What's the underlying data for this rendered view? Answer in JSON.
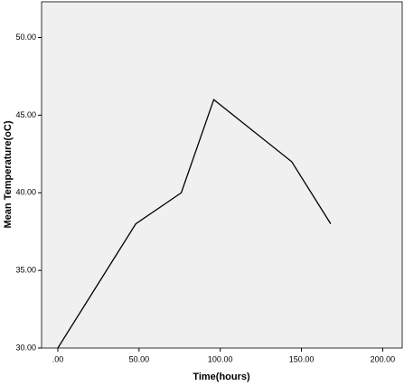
{
  "chart_data": {
    "type": "line",
    "x_label": "Time(hours)",
    "y_label": "Mean Temperature(oC)",
    "x": [
      0,
      48,
      76,
      96,
      144,
      168
    ],
    "series": [
      {
        "name": "Mean Temperature",
        "color": "#000000",
        "values": [
          30,
          38,
          40,
          46,
          42,
          38
        ]
      }
    ],
    "xlim": [
      -10,
      212
    ],
    "ylim": [
      30,
      52.3
    ],
    "xticks": [
      {
        "value": 0,
        "label": ".00"
      },
      {
        "value": 50,
        "label": "50.00"
      },
      {
        "value": 100,
        "label": "100.00"
      },
      {
        "value": 150,
        "label": "150.00"
      },
      {
        "value": 200,
        "label": "200.00"
      }
    ],
    "yticks": [
      {
        "value": 30,
        "label": "30.00"
      },
      {
        "value": 35,
        "label": "35.00"
      },
      {
        "value": 40,
        "label": "40.00"
      },
      {
        "value": 45,
        "label": "45.00"
      },
      {
        "value": 50,
        "label": "50.00"
      }
    ],
    "background": "#f0f0f0"
  }
}
